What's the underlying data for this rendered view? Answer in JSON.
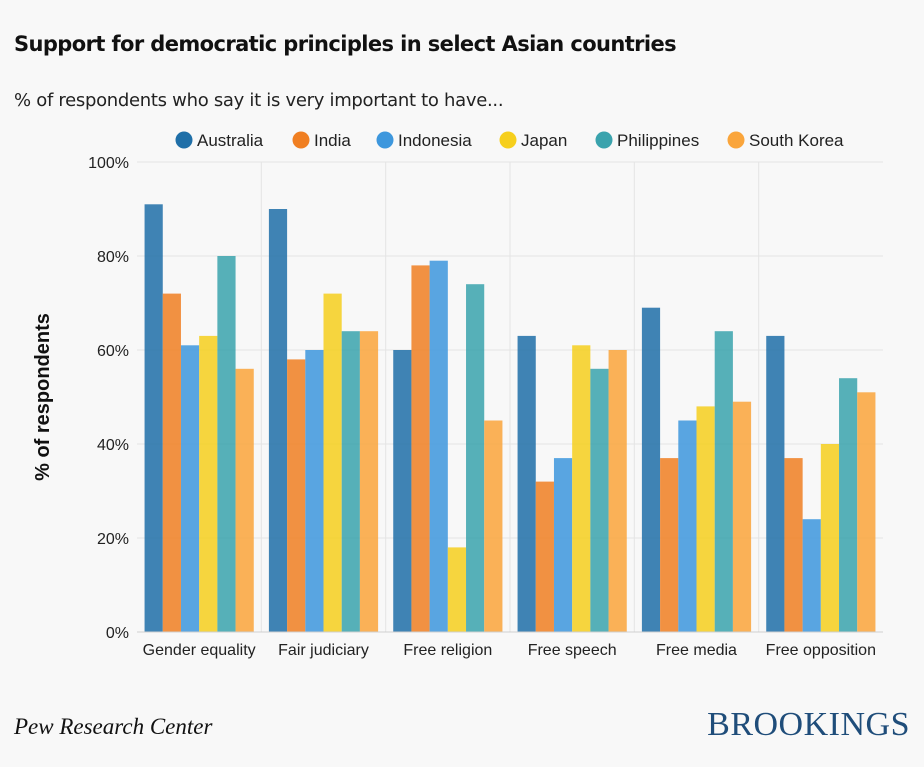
{
  "header": {
    "title": "Support for democratic principles in select Asian countries",
    "subtitle": "% of respondents who say it is very important to have..."
  },
  "footer": {
    "source": "Pew Research Center",
    "brand": "BROOKINGS"
  },
  "chart_data": {
    "type": "bar",
    "title": "Support for democratic principles in select Asian countries",
    "subtitle": "% of respondents who say it is very important to have...",
    "xlabel": "",
    "ylabel": "% of respondents",
    "ylim": [
      0,
      100
    ],
    "yticks": [
      0,
      20,
      40,
      60,
      80,
      100
    ],
    "ytick_suffix": "%",
    "grid": true,
    "legend_position": "top",
    "categories": [
      "Gender equality",
      "Fair judiciary",
      "Free religion",
      "Free speech",
      "Free media",
      "Free opposition"
    ],
    "series": [
      {
        "name": "Australia",
        "color": "#1f6fa8",
        "values": [
          91,
          90,
          60,
          63,
          69,
          63
        ]
      },
      {
        "name": "India",
        "color": "#f07f22",
        "values": [
          72,
          58,
          78,
          32,
          37,
          37
        ]
      },
      {
        "name": "Indonesia",
        "color": "#3d97dd",
        "values": [
          61,
          60,
          79,
          37,
          45,
          24
        ]
      },
      {
        "name": "Japan",
        "color": "#f6cf1d",
        "values": [
          63,
          72,
          18,
          61,
          48,
          40
        ]
      },
      {
        "name": "Philippines",
        "color": "#3aa3ad",
        "values": [
          80,
          64,
          74,
          56,
          64,
          54
        ]
      },
      {
        "name": "South Korea",
        "color": "#faa53b",
        "values": [
          56,
          64,
          45,
          60,
          49,
          51
        ]
      }
    ]
  }
}
